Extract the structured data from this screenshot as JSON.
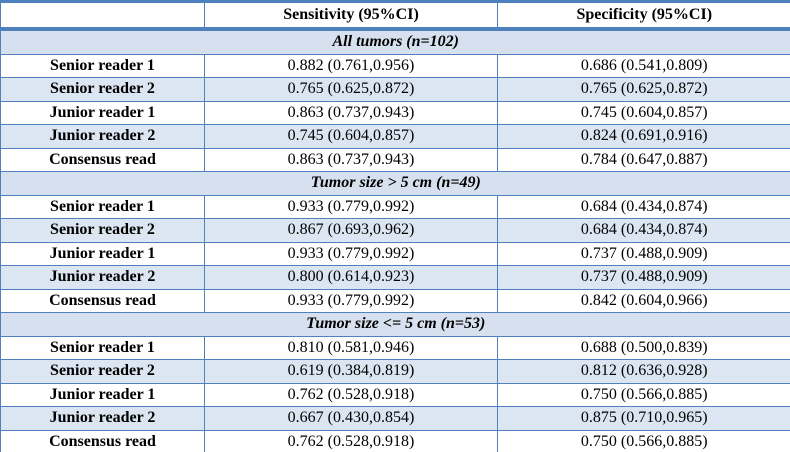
{
  "colors": {
    "accent_blue": "#4F81BD",
    "section_header_bg": "#D6E0EE",
    "stripe_row_bg": "#DCE6F2",
    "text": "#000000"
  },
  "table": {
    "columns": [
      "",
      "Sensitivity (95%CI)",
      "Specificity (95%CI)"
    ],
    "sections": [
      {
        "title": "All tumors (n=102)",
        "rows": [
          {
            "label": "Senior reader 1",
            "sensitivity": "0.882 (0.761,0.956)",
            "specificity": "0.686 (0.541,0.809)"
          },
          {
            "label": "Senior reader 2",
            "sensitivity": "0.765 (0.625,0.872)",
            "specificity": "0.765 (0.625,0.872)"
          },
          {
            "label": "Junior reader 1",
            "sensitivity": "0.863 (0.737,0.943)",
            "specificity": "0.745 (0.604,0.857)"
          },
          {
            "label": "Junior reader 2",
            "sensitivity": "0.745 (0.604,0.857)",
            "specificity": "0.824 (0.691,0.916)"
          },
          {
            "label": "Consensus read",
            "sensitivity": "0.863 (0.737,0.943)",
            "specificity": "0.784 (0.647,0.887)"
          }
        ]
      },
      {
        "title": "Tumor size > 5 cm (n=49)",
        "rows": [
          {
            "label": "Senior reader 1",
            "sensitivity": "0.933 (0.779,0.992)",
            "specificity": "0.684 (0.434,0.874)"
          },
          {
            "label": "Senior reader 2",
            "sensitivity": "0.867 (0.693,0.962)",
            "specificity": "0.684 (0.434,0.874)"
          },
          {
            "label": "Junior reader 1",
            "sensitivity": "0.933 (0.779,0.992)",
            "specificity": "0.737 (0.488,0.909)"
          },
          {
            "label": "Junior reader 2",
            "sensitivity": "0.800 (0.614,0.923)",
            "specificity": "0.737 (0.488,0.909)"
          },
          {
            "label": "Consensus read",
            "sensitivity": "0.933 (0.779,0.992)",
            "specificity": "0.842 (0.604,0.966)"
          }
        ]
      },
      {
        "title": "Tumor size <= 5 cm (n=53)",
        "rows": [
          {
            "label": "Senior reader 1",
            "sensitivity": "0.810 (0.581,0.946)",
            "specificity": "0.688 (0.500,0.839)"
          },
          {
            "label": "Senior reader 2",
            "sensitivity": "0.619 (0.384,0.819)",
            "specificity": "0.812 (0.636,0.928)"
          },
          {
            "label": "Junior reader 1",
            "sensitivity": "0.762 (0.528,0.918)",
            "specificity": "0.750 (0.566,0.885)"
          },
          {
            "label": "Junior reader 2",
            "sensitivity": "0.667 (0.430,0.854)",
            "specificity": "0.875 (0.710,0.965)"
          },
          {
            "label": "Consensus read",
            "sensitivity": "0.762 (0.528,0.918)",
            "specificity": "0.750 (0.566,0.885)"
          }
        ]
      }
    ]
  }
}
